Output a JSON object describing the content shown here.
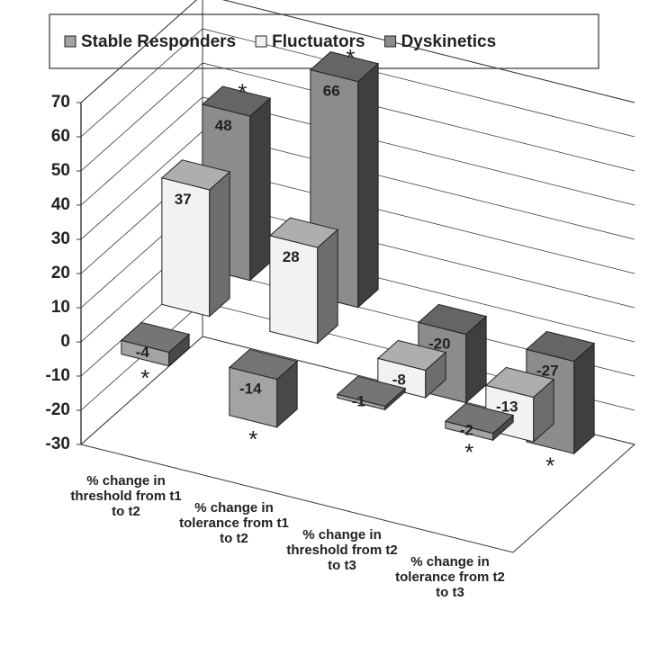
{
  "chart_data": {
    "type": "bar3d",
    "categories": [
      "% change in\nthreshold from t1\nto t2",
      "% change in\ntolerance from t1\nto t2",
      "% change in\nthreshold from t2\nto t3",
      "% change in\ntolerance from t2\nto t3"
    ],
    "series": [
      {
        "name": "Stable Responders",
        "color": "#a3a3a3",
        "values": [
          -4,
          -14,
          -1,
          -2
        ],
        "annotations": [
          "*",
          "*",
          null,
          "*"
        ]
      },
      {
        "name": "Fluctuators",
        "color": "#f2f2f2",
        "values": [
          37,
          28,
          -8,
          -13
        ]
      },
      {
        "name": "Dyskinetics",
        "color": "#8c8c8c",
        "values": [
          48,
          66,
          -20,
          -27
        ],
        "annotations": [
          "*",
          "*",
          null,
          "*"
        ]
      }
    ],
    "ylim": [
      -30,
      70
    ],
    "yticks": [
      -30,
      -20,
      -10,
      0,
      10,
      20,
      30,
      40,
      50,
      60,
      70
    ],
    "grid": true
  }
}
